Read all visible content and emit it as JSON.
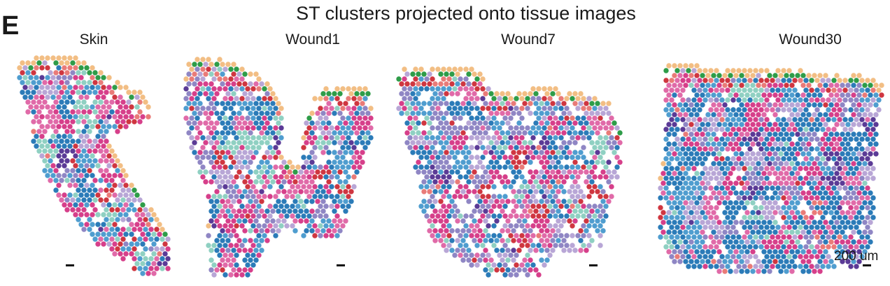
{
  "panel_letter": "E",
  "title": "ST clusters projected onto tissue images",
  "samples": [
    {
      "name": "Skin"
    },
    {
      "name": "Wound1"
    },
    {
      "name": "Wound7"
    },
    {
      "name": "Wound30"
    }
  ],
  "scale_bar_label": "200 um",
  "cluster_colors": [
    "#f2be84",
    "#2e9c48",
    "#cf3640",
    "#d63f8a",
    "#e06aa8",
    "#2b7bb8",
    "#4f9dcf",
    "#8f86c4",
    "#b8a6d6",
    "#8fd0c2",
    "#5b3a96",
    "#e97b78"
  ]
}
